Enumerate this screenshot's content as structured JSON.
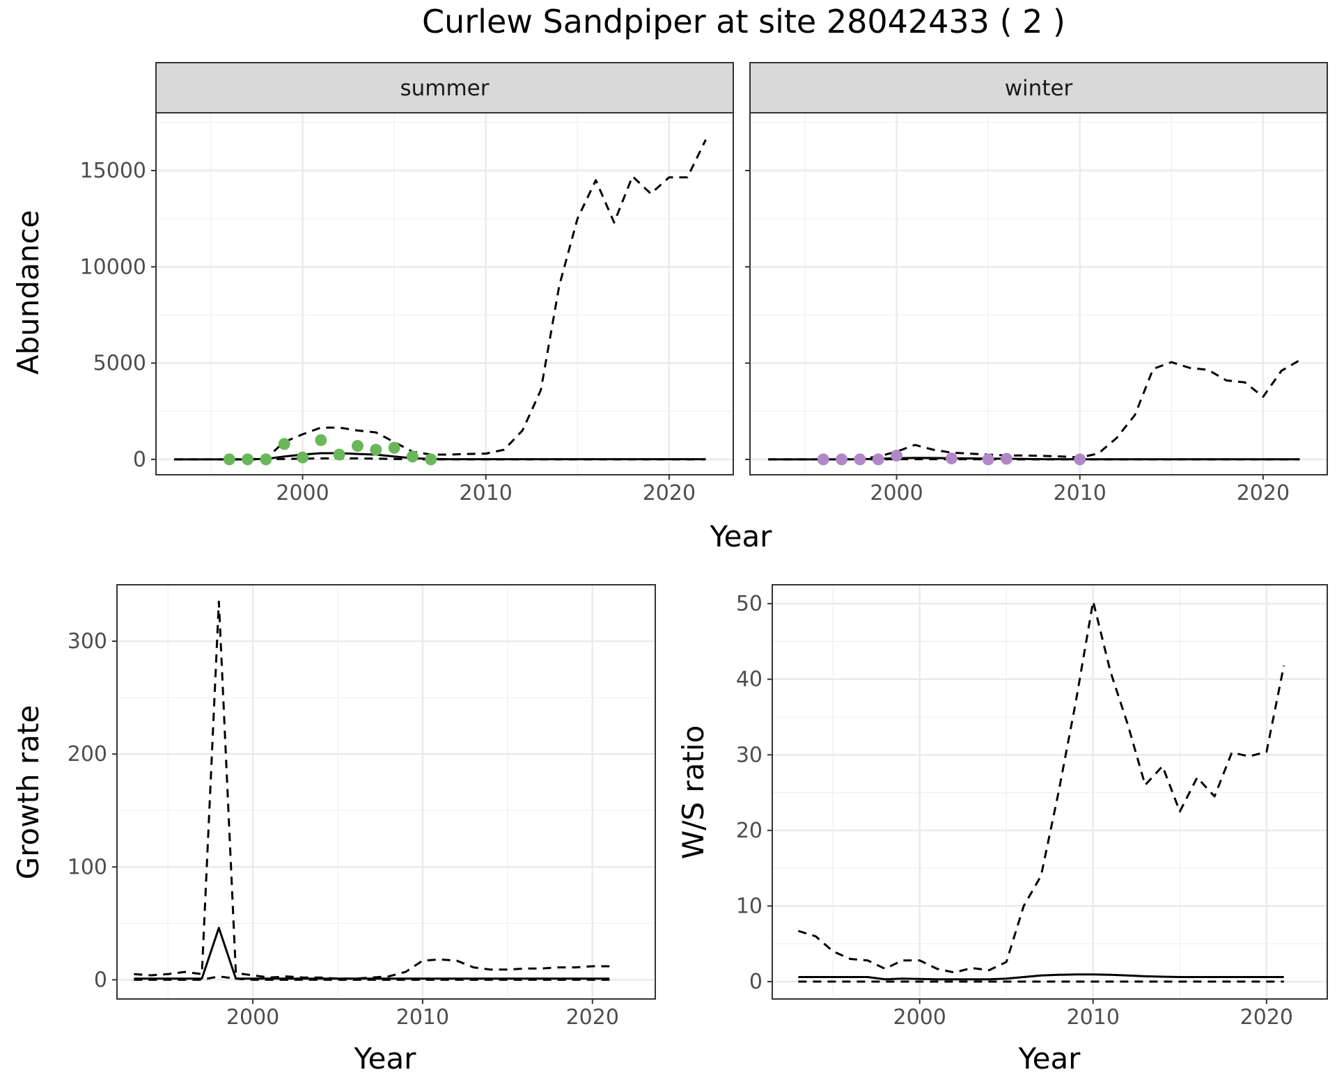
{
  "title": "Curlew Sandpiper at site 28042433 ( 2 )",
  "chart_data": [
    {
      "type": "line",
      "panel": "summer",
      "xlabel": "Year",
      "ylabel": "Abundance",
      "xlim": [
        1992,
        2023.5
      ],
      "ylim": [
        -800,
        18000
      ],
      "x_ticks": [
        2000,
        2010,
        2020
      ],
      "y_ticks": [
        0,
        5000,
        10000,
        15000
      ],
      "grid": true,
      "series": [
        {
          "style": "dashed",
          "x": [
            1993,
            1994,
            1995,
            1996,
            1997,
            1998,
            1999,
            2000,
            2001,
            2002,
            2003,
            2004,
            2005,
            2006,
            2007,
            2008,
            2009,
            2010,
            2011,
            2012,
            2013,
            2014,
            2015,
            2016,
            2017,
            2018,
            2019,
            2020,
            2021,
            2022
          ],
          "values": [
            0,
            0,
            0,
            0,
            0,
            50,
            900,
            1300,
            1650,
            1650,
            1500,
            1400,
            900,
            400,
            250,
            250,
            280,
            300,
            500,
            1500,
            3600,
            9000,
            12500,
            14500,
            12300,
            14700,
            13800,
            14650,
            14650,
            16600
          ]
        },
        {
          "style": "solid",
          "x": [
            1993,
            1994,
            1995,
            1996,
            1997,
            1998,
            1999,
            2000,
            2001,
            2002,
            2003,
            2004,
            2005,
            2006,
            2007,
            2008,
            2009,
            2010,
            2011,
            2012,
            2013,
            2014,
            2015,
            2016,
            2017,
            2018,
            2019,
            2020,
            2021,
            2022
          ],
          "values": [
            0,
            0,
            0,
            0,
            0,
            20,
            150,
            250,
            320,
            320,
            280,
            250,
            150,
            60,
            20,
            10,
            10,
            10,
            10,
            10,
            10,
            10,
            10,
            10,
            10,
            10,
            10,
            10,
            10,
            10
          ]
        },
        {
          "style": "dashed",
          "x": [
            1993,
            1994,
            1995,
            1996,
            1997,
            1998,
            1999,
            2000,
            2001,
            2002,
            2003,
            2004,
            2005,
            2006,
            2007,
            2008,
            2009,
            2010,
            2011,
            2012,
            2013,
            2014,
            2015,
            2016,
            2017,
            2018,
            2019,
            2020,
            2021,
            2022
          ],
          "values": [
            0,
            0,
            0,
            0,
            0,
            0,
            20,
            40,
            50,
            50,
            50,
            40,
            20,
            0,
            0,
            0,
            0,
            0,
            0,
            0,
            0,
            0,
            0,
            0,
            0,
            0,
            0,
            0,
            0,
            0
          ]
        }
      ],
      "points": {
        "color": "#6ab759",
        "x": [
          1996,
          1997,
          1998,
          1999,
          2000,
          2001,
          2002,
          2003,
          2004,
          2005,
          2006,
          2007
        ],
        "values": [
          0,
          0,
          0,
          800,
          100,
          1000,
          250,
          700,
          500,
          600,
          150,
          0
        ]
      }
    },
    {
      "type": "line",
      "panel": "winter",
      "xlabel": "Year",
      "ylabel": "Abundance",
      "xlim": [
        1992,
        2023.5
      ],
      "ylim": [
        -800,
        18000
      ],
      "x_ticks": [
        2000,
        2010,
        2020
      ],
      "y_ticks": [
        0,
        5000,
        10000,
        15000
      ],
      "grid": true,
      "series": [
        {
          "style": "dashed",
          "x": [
            1993,
            1994,
            1995,
            1996,
            1997,
            1998,
            1999,
            2000,
            2001,
            2002,
            2003,
            2004,
            2005,
            2006,
            2007,
            2008,
            2009,
            2010,
            2011,
            2012,
            2013,
            2014,
            2015,
            2016,
            2017,
            2018,
            2019,
            2020,
            2021,
            2022
          ],
          "values": [
            0,
            0,
            0,
            0,
            0,
            20,
            150,
            400,
            750,
            500,
            350,
            300,
            250,
            200,
            200,
            180,
            150,
            100,
            300,
            1100,
            2300,
            4700,
            5050,
            4750,
            4650,
            4100,
            4000,
            3250,
            4600,
            5150
          ]
        },
        {
          "style": "solid",
          "x": [
            1993,
            1994,
            1995,
            1996,
            1997,
            1998,
            1999,
            2000,
            2001,
            2002,
            2003,
            2004,
            2005,
            2006,
            2007,
            2008,
            2009,
            2010,
            2011,
            2012,
            2013,
            2014,
            2015,
            2016,
            2017,
            2018,
            2019,
            2020,
            2021,
            2022
          ],
          "values": [
            0,
            0,
            0,
            0,
            0,
            10,
            30,
            60,
            80,
            70,
            60,
            50,
            40,
            30,
            20,
            10,
            10,
            5,
            5,
            5,
            5,
            5,
            5,
            5,
            5,
            5,
            5,
            5,
            5,
            5
          ]
        },
        {
          "style": "dashed",
          "x": [
            1993,
            1994,
            1995,
            1996,
            1997,
            1998,
            1999,
            2000,
            2001,
            2002,
            2003,
            2004,
            2005,
            2006,
            2007,
            2008,
            2009,
            2010,
            2011,
            2012,
            2013,
            2014,
            2015,
            2016,
            2017,
            2018,
            2019,
            2020,
            2021,
            2022
          ],
          "values": [
            0,
            0,
            0,
            0,
            0,
            0,
            0,
            10,
            10,
            10,
            10,
            10,
            0,
            0,
            0,
            0,
            0,
            0,
            0,
            0,
            0,
            0,
            0,
            0,
            0,
            0,
            0,
            0,
            0,
            0
          ]
        }
      ],
      "points": {
        "color": "#b287c8",
        "x": [
          1996,
          1997,
          1998,
          1999,
          2000,
          2003,
          2005,
          2006,
          2010
        ],
        "values": [
          0,
          0,
          0,
          0,
          200,
          50,
          0,
          30,
          0
        ]
      }
    },
    {
      "type": "line",
      "panel": "growth",
      "xlabel": "Year",
      "ylabel": "Growth rate",
      "xlim": [
        1992,
        2023.7
      ],
      "ylim": [
        -17,
        350
      ],
      "x_ticks": [
        2000,
        2010,
        2020
      ],
      "y_ticks": [
        0,
        100,
        200,
        300
      ],
      "grid": true,
      "series": [
        {
          "style": "dashed",
          "x": [
            1993,
            1994,
            1995,
            1996,
            1997,
            1998,
            1999,
            2000,
            2001,
            2002,
            2003,
            2004,
            2005,
            2006,
            2007,
            2008,
            2009,
            2010,
            2011,
            2012,
            2013,
            2014,
            2015,
            2016,
            2017,
            2018,
            2019,
            2020,
            2021
          ],
          "values": [
            5,
            4,
            5,
            7,
            5,
            335,
            6,
            4,
            2,
            3,
            2,
            2,
            1,
            1,
            2,
            3,
            7,
            17,
            18,
            17,
            11,
            9,
            9,
            10,
            10,
            11,
            11,
            12,
            12
          ]
        },
        {
          "style": "solid",
          "x": [
            1993,
            1994,
            1995,
            1996,
            1997,
            1998,
            1999,
            2000,
            2001,
            2002,
            2003,
            2004,
            2005,
            2006,
            2007,
            2008,
            2009,
            2010,
            2011,
            2012,
            2013,
            2014,
            2015,
            2016,
            2017,
            2018,
            2019,
            2020,
            2021
          ],
          "values": [
            1,
            1,
            1,
            1,
            1,
            46,
            1,
            1,
            1,
            1,
            1,
            1,
            1,
            1,
            1,
            1,
            1,
            1,
            1,
            1,
            1,
            1,
            1,
            1,
            1,
            1,
            1,
            1,
            1
          ]
        },
        {
          "style": "dashed",
          "x": [
            1993,
            1994,
            1995,
            1996,
            1997,
            1998,
            1999,
            2000,
            2001,
            2002,
            2003,
            2004,
            2005,
            2006,
            2007,
            2008,
            2009,
            2010,
            2011,
            2012,
            2013,
            2014,
            2015,
            2016,
            2017,
            2018,
            2019,
            2020,
            2021
          ],
          "values": [
            0,
            0,
            0,
            0,
            0,
            3,
            1,
            0,
            0,
            0,
            0,
            0,
            0,
            0,
            0,
            0,
            0,
            0,
            0,
            0,
            0,
            0,
            0,
            0,
            0,
            0,
            0,
            0,
            0
          ]
        }
      ]
    },
    {
      "type": "line",
      "panel": "ratio",
      "xlabel": "Year",
      "ylabel": "W/S ratio",
      "xlim": [
        1991.5,
        2023.5
      ],
      "ylim": [
        -2.3,
        52.5
      ],
      "x_ticks": [
        2000,
        2010,
        2020
      ],
      "y_ticks": [
        0,
        10,
        20,
        30,
        40,
        50
      ],
      "grid": true,
      "series": [
        {
          "style": "dashed",
          "x": [
            1993,
            1994,
            1995,
            1996,
            1997,
            1998,
            1999,
            2000,
            2001,
            2002,
            2003,
            2004,
            2005,
            2006,
            2007,
            2008,
            2009,
            2010,
            2011,
            2012,
            2013,
            2014,
            2015,
            2016,
            2017,
            2018,
            2019,
            2020,
            2021
          ],
          "values": [
            6.7,
            6,
            4,
            3,
            2.8,
            1.7,
            2.8,
            2.8,
            1.7,
            1.2,
            1.8,
            1.5,
            2.6,
            10,
            14,
            25,
            37,
            50.3,
            41,
            34,
            26,
            28.5,
            22.5,
            27,
            24.5,
            30.3,
            29.8,
            30.4,
            41.8
          ]
        },
        {
          "style": "solid",
          "x": [
            1993,
            1994,
            1995,
            1996,
            1997,
            1998,
            1999,
            2000,
            2001,
            2002,
            2003,
            2004,
            2005,
            2006,
            2007,
            2008,
            2009,
            2010,
            2011,
            2012,
            2013,
            2014,
            2015,
            2016,
            2017,
            2018,
            2019,
            2020,
            2021
          ],
          "values": [
            0.6,
            0.6,
            0.6,
            0.6,
            0.6,
            0.3,
            0.4,
            0.35,
            0.3,
            0.3,
            0.3,
            0.3,
            0.4,
            0.6,
            0.8,
            0.9,
            0.95,
            0.95,
            0.9,
            0.8,
            0.7,
            0.65,
            0.6,
            0.6,
            0.6,
            0.6,
            0.6,
            0.6,
            0.6
          ]
        },
        {
          "style": "dashed",
          "x": [
            1993,
            1994,
            1995,
            1996,
            1997,
            1998,
            1999,
            2000,
            2001,
            2002,
            2003,
            2004,
            2005,
            2006,
            2007,
            2008,
            2009,
            2010,
            2011,
            2012,
            2013,
            2014,
            2015,
            2016,
            2017,
            2018,
            2019,
            2020,
            2021
          ],
          "values": [
            0,
            0,
            0,
            0,
            0,
            0,
            0,
            0,
            0,
            0,
            0,
            0,
            0,
            0,
            0,
            0,
            0,
            0,
            0,
            0,
            0,
            0,
            0,
            0,
            0,
            0,
            0,
            0,
            0
          ]
        }
      ]
    }
  ]
}
